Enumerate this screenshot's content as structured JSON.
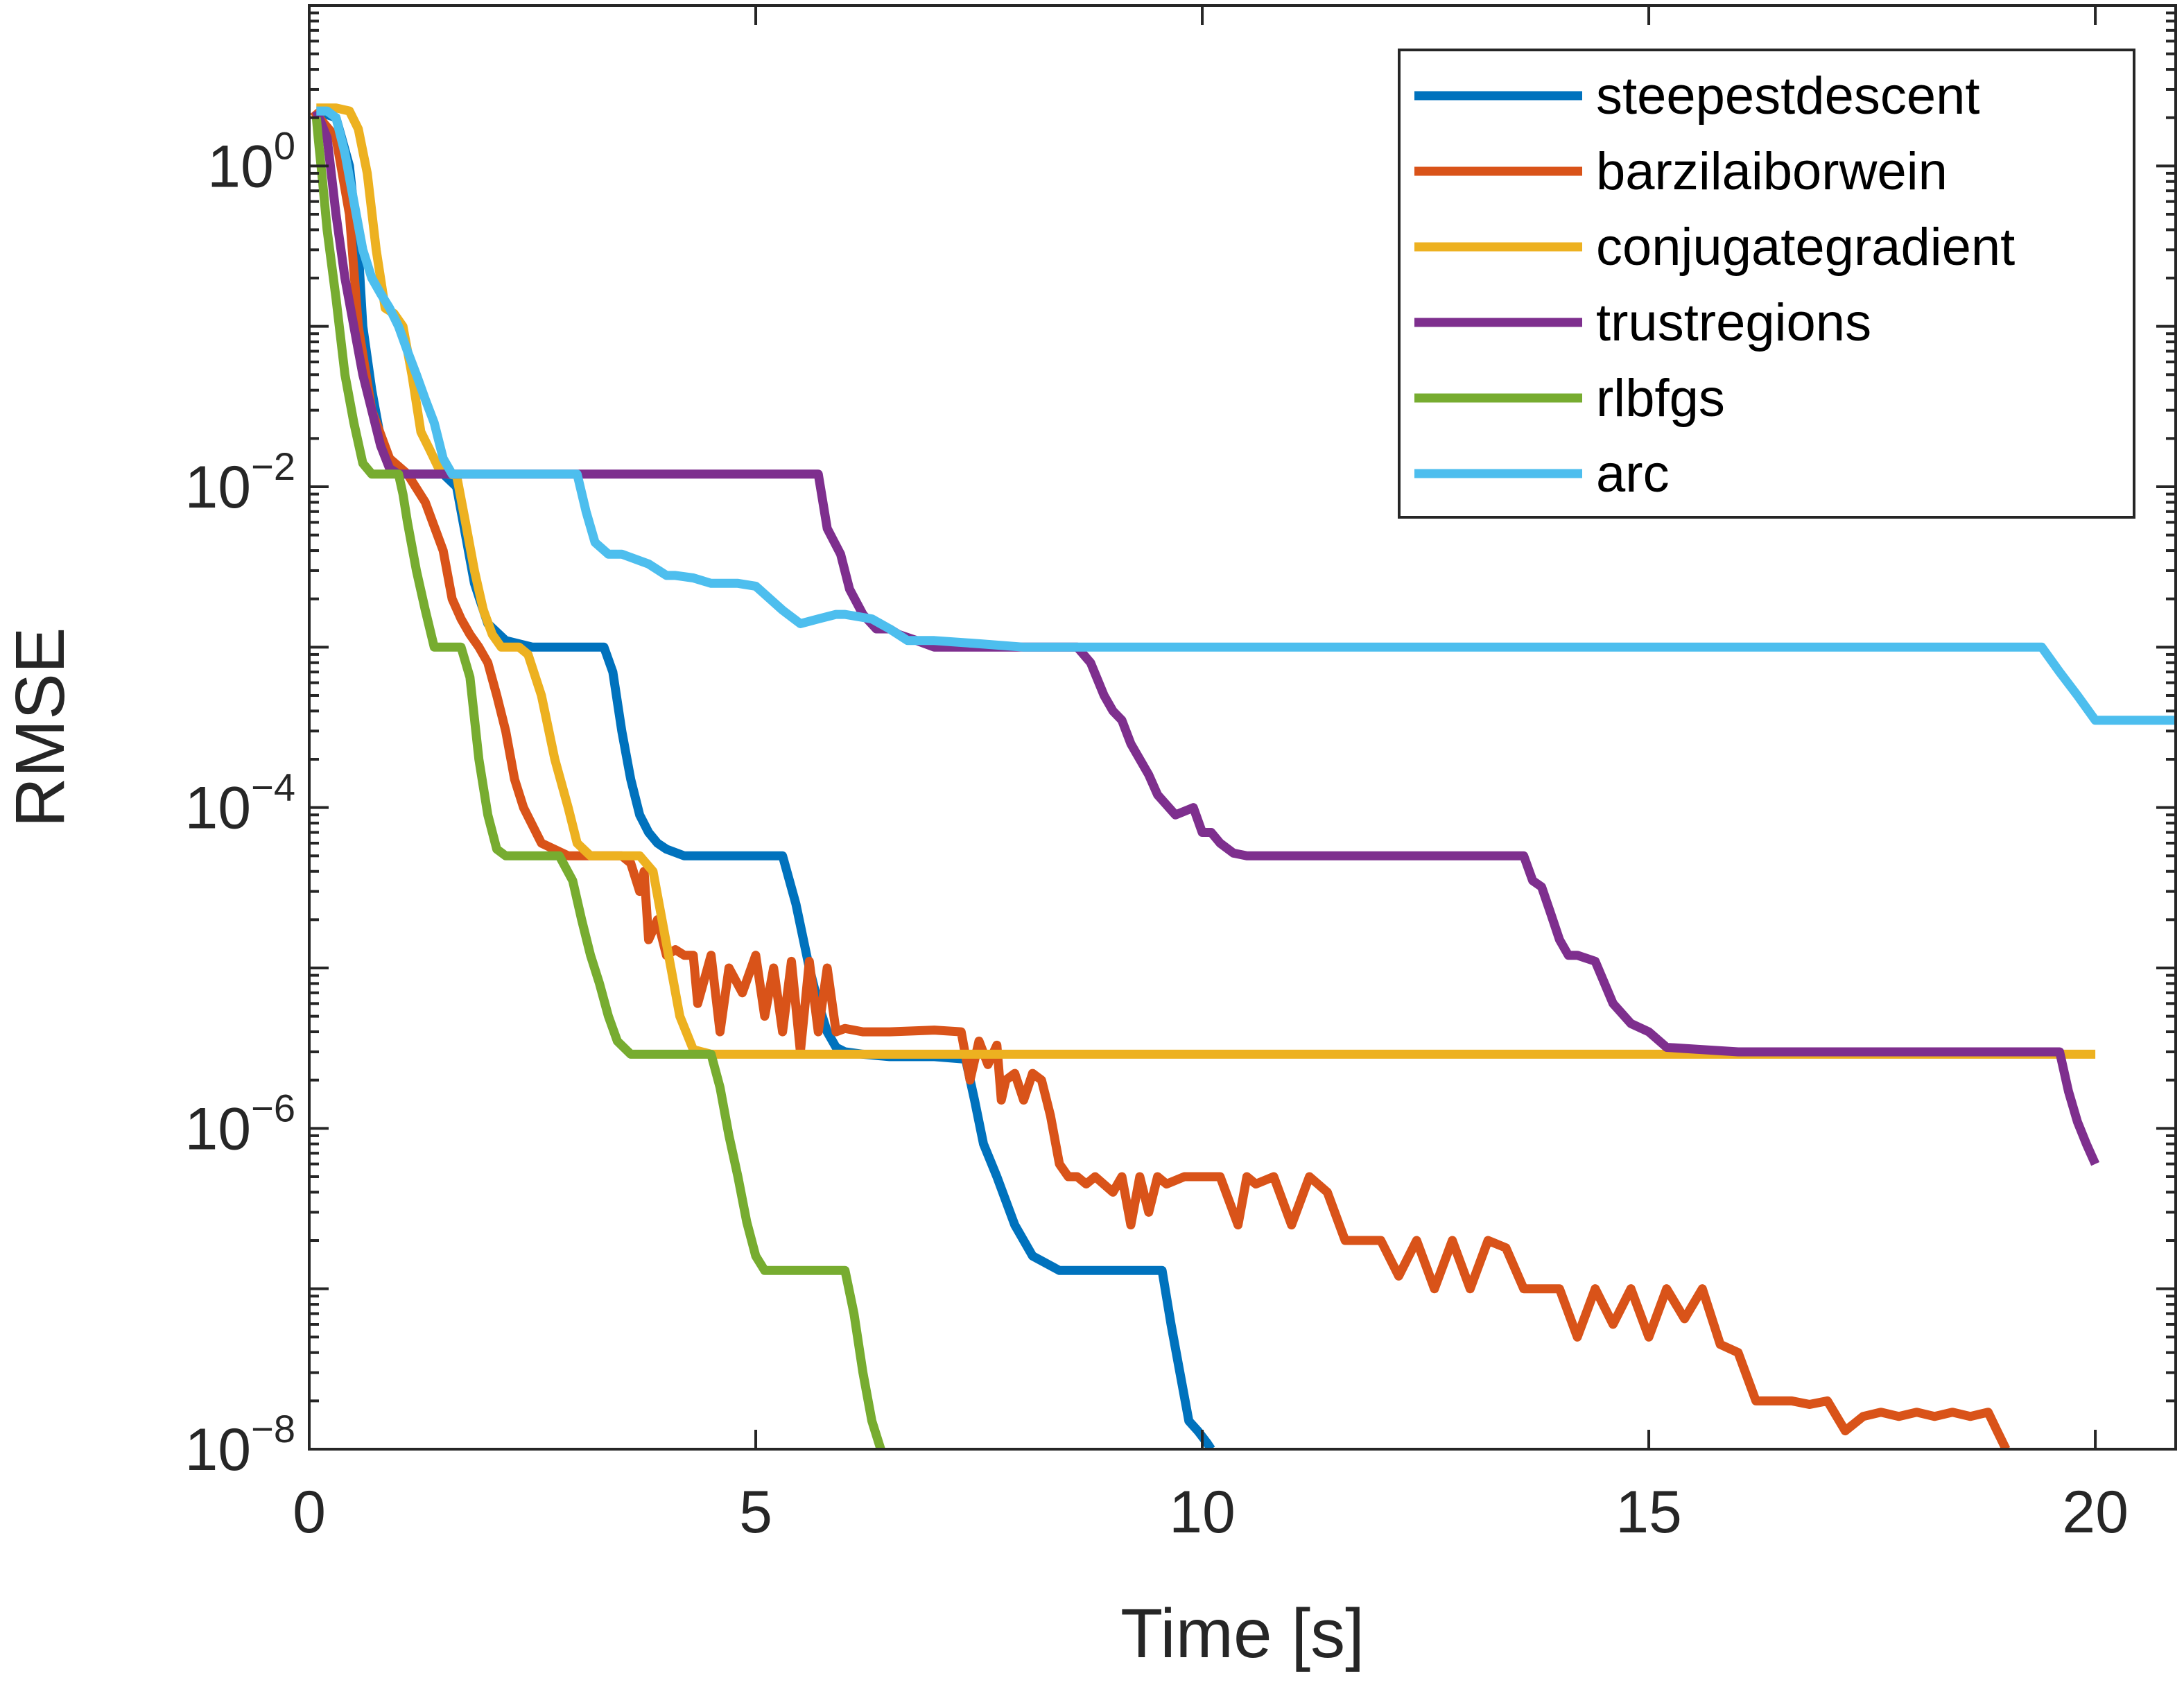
{
  "chart_data": {
    "type": "line",
    "title": "",
    "xlabel": "Time [s]",
    "ylabel": "RMSE",
    "xscale": "linear",
    "yscale": "log",
    "xlim": [
      0,
      20.9
    ],
    "ylim": [
      1e-08,
      10
    ],
    "xticks": [
      0,
      5,
      10,
      15,
      20
    ],
    "xtick_labels": [
      "0",
      "5",
      "10",
      "15",
      "20"
    ],
    "yticks": [
      1,
      0.01,
      0.0001,
      1e-06,
      1e-08
    ],
    "ytick_labels": [
      {
        "base": "10",
        "exp": "0"
      },
      {
        "base": "10",
        "exp": "−2"
      },
      {
        "base": "10",
        "exp": "−4"
      },
      {
        "base": "10",
        "exp": "−6"
      },
      {
        "base": "10",
        "exp": "−8"
      }
    ],
    "grid": false,
    "legend_position": "top-right",
    "series": [
      {
        "name": "steepestdescent",
        "color": "#0072BD",
        "x": [
          0.08,
          0.3,
          0.45,
          0.55,
          0.6,
          0.7,
          0.8,
          0.9,
          1.0,
          1.2,
          1.5,
          1.65,
          1.75,
          1.85,
          2.0,
          2.2,
          2.5,
          2.8,
          3.1,
          3.3,
          3.4,
          3.5,
          3.6,
          3.7,
          3.8,
          3.9,
          4.0,
          4.2,
          4.5,
          4.8,
          5.3,
          5.45,
          5.6,
          5.7,
          5.8,
          5.9,
          6.0,
          6.2,
          6.5,
          7.0,
          7.35,
          7.45,
          7.55,
          7.7,
          7.9,
          8.1,
          8.4,
          8.8,
          9.2,
          9.55,
          9.65,
          9.75,
          9.85,
          9.95,
          10.05,
          10.1
        ],
        "y": [
          2.2,
          2.0,
          1.0,
          0.3,
          0.1,
          0.04,
          0.02,
          0.014,
          0.012,
          0.012,
          0.012,
          0.01,
          0.005,
          0.0025,
          0.0014,
          0.0011,
          0.001,
          0.001,
          0.001,
          0.001,
          0.0007,
          0.0003,
          0.00015,
          9e-05,
          7e-05,
          6e-05,
          5.5e-05,
          5e-05,
          5e-05,
          5e-05,
          5e-05,
          2.5e-05,
          1e-05,
          6e-06,
          4e-06,
          3.2e-06,
          3e-06,
          2.9e-06,
          2.8e-06,
          2.8e-06,
          2.7e-06,
          1.5e-06,
          8e-07,
          5e-07,
          2.5e-07,
          1.6e-07,
          1.3e-07,
          1.3e-07,
          1.3e-07,
          1.3e-07,
          6e-08,
          3e-08,
          1.5e-08,
          1.3e-08,
          1.1e-08,
          1e-08
        ]
      },
      {
        "name": "barzilaiborwein",
        "color": "#D95319",
        "x": [
          0.05,
          0.3,
          0.45,
          0.55,
          0.7,
          0.9,
          1.1,
          1.3,
          1.5,
          1.6,
          1.7,
          1.8,
          1.9,
          2.0,
          2.1,
          2.2,
          2.3,
          2.4,
          2.6,
          2.9,
          3.2,
          3.5,
          3.6,
          3.7,
          3.75,
          3.8,
          3.9,
          4.0,
          4.1,
          4.2,
          4.3,
          4.35,
          4.5,
          4.6,
          4.7,
          4.85,
          5.0,
          5.1,
          5.2,
          5.3,
          5.4,
          5.5,
          5.6,
          5.7,
          5.8,
          5.9,
          6.0,
          6.2,
          6.5,
          7.0,
          7.3,
          7.4,
          7.5,
          7.6,
          7.7,
          7.75,
          7.8,
          7.9,
          8.0,
          8.1,
          8.2,
          8.3,
          8.4,
          8.5,
          8.6,
          8.7,
          8.8,
          9.0,
          9.1,
          9.2,
          9.3,
          9.4,
          9.5,
          9.6,
          9.8,
          10.0,
          10.2,
          10.4,
          10.5,
          10.6,
          10.8,
          11.0,
          11.2,
          11.4,
          11.6,
          11.8,
          12.0,
          12.2,
          12.4,
          12.6,
          12.8,
          13.0,
          13.2,
          13.4,
          13.6,
          13.8,
          14.0,
          14.2,
          14.4,
          14.6,
          14.8,
          15.0,
          15.2,
          15.4,
          15.6,
          15.8,
          16.0,
          16.2,
          16.4,
          16.6,
          16.8,
          17.0,
          17.2,
          17.4,
          17.6,
          17.8,
          18.0,
          18.2,
          18.4,
          18.6,
          18.8,
          18.9,
          19.0
        ],
        "y": [
          2.2,
          1.5,
          0.5,
          0.1,
          0.03,
          0.015,
          0.012,
          0.008,
          0.004,
          0.002,
          0.0015,
          0.0012,
          0.001,
          0.0008,
          0.0005,
          0.0003,
          0.00015,
          0.0001,
          6e-05,
          5e-05,
          5e-05,
          5e-05,
          4.5e-05,
          3e-05,
          4e-05,
          1.5e-05,
          2e-05,
          1.2e-05,
          1.3e-05,
          1.2e-05,
          1.2e-05,
          6e-06,
          1.2e-05,
          4e-06,
          1e-05,
          7e-06,
          1.2e-05,
          5e-06,
          1e-05,
          4e-06,
          1.1e-05,
          3e-06,
          1.1e-05,
          4e-06,
          1e-05,
          4e-06,
          4.2e-06,
          4e-06,
          4e-06,
          4.1e-06,
          4e-06,
          2e-06,
          3.5e-06,
          2.5e-06,
          3.3e-06,
          1.5e-06,
          2e-06,
          2.2e-06,
          1.5e-06,
          2.2e-06,
          2e-06,
          1.2e-06,
          6e-07,
          5e-07,
          5e-07,
          4.5e-07,
          5e-07,
          4e-07,
          5e-07,
          2.5e-07,
          5e-07,
          3e-07,
          5e-07,
          4.5e-07,
          5e-07,
          5e-07,
          5e-07,
          2.5e-07,
          5e-07,
          4.5e-07,
          5e-07,
          2.5e-07,
          5e-07,
          4e-07,
          2e-07,
          2e-07,
          2e-07,
          1.2e-07,
          2e-07,
          1e-07,
          2e-07,
          1e-07,
          2e-07,
          1.8e-07,
          1e-07,
          1e-07,
          1e-07,
          5e-08,
          1e-07,
          6e-08,
          1e-07,
          5e-08,
          1e-07,
          6.5e-08,
          1e-07,
          4.5e-08,
          4e-08,
          2e-08,
          2e-08,
          2e-08,
          1.9e-08,
          2e-08,
          1.3e-08,
          1.6e-08,
          1.7e-08,
          1.6e-08,
          1.7e-08,
          1.6e-08,
          1.7e-08,
          1.6e-08,
          1.7e-08,
          1.3e-08,
          1e-08
        ]
      },
      {
        "name": "conjugategradient",
        "color": "#EDB120",
        "x": [
          0.08,
          0.3,
          0.45,
          0.55,
          0.65,
          0.75,
          0.85,
          0.95,
          1.05,
          1.15,
          1.25,
          1.35,
          1.45,
          1.55,
          1.65,
          1.75,
          1.85,
          1.95,
          2.05,
          2.15,
          2.25,
          2.35,
          2.45,
          2.6,
          2.75,
          2.9,
          3.0,
          3.15,
          3.3,
          3.5,
          3.7,
          3.85,
          3.95,
          4.05,
          4.15,
          4.3,
          4.5,
          5.0,
          7.0,
          10.0,
          13.0,
          16.0,
          20.0
        ],
        "y": [
          2.3,
          2.3,
          2.2,
          1.7,
          0.9,
          0.3,
          0.13,
          0.12,
          0.1,
          0.05,
          0.022,
          0.017,
          0.013,
          0.012,
          0.0118,
          0.006,
          0.003,
          0.0017,
          0.0012,
          0.001,
          0.001,
          0.001,
          0.0009,
          0.0005,
          0.0002,
          0.0001,
          6e-05,
          5e-05,
          5e-05,
          5e-05,
          5e-05,
          4e-05,
          2e-05,
          1e-05,
          5e-06,
          3.1e-06,
          2.9e-06,
          2.9e-06,
          2.9e-06,
          2.9e-06,
          2.9e-06,
          2.9e-06,
          2.9e-06
        ]
      },
      {
        "name": "trustregions",
        "color": "#7E2F8E",
        "x": [
          0.08,
          0.2,
          0.3,
          0.4,
          0.5,
          0.6,
          0.7,
          0.8,
          0.9,
          1.0,
          1.2,
          1.5,
          2.0,
          3.0,
          4.0,
          5.0,
          5.7,
          5.8,
          5.95,
          6.05,
          6.2,
          6.35,
          6.5,
          6.6,
          6.8,
          7.0,
          7.5,
          8.0,
          8.6,
          8.75,
          8.9,
          9.0,
          9.1,
          9.2,
          9.3,
          9.4,
          9.5,
          9.7,
          9.9,
          10.0,
          10.1,
          10.2,
          10.35,
          10.5,
          10.7,
          11.0,
          12.0,
          13.0,
          13.6,
          13.7,
          13.8,
          13.9,
          14.0,
          14.1,
          14.2,
          14.4,
          14.6,
          14.8,
          15.0,
          15.2,
          15.6,
          16.0,
          17.0,
          18.0,
          19.0,
          19.6,
          19.7,
          19.8,
          19.9,
          20.0
        ],
        "y": [
          2.2,
          1.5,
          0.5,
          0.2,
          0.1,
          0.05,
          0.03,
          0.018,
          0.013,
          0.012,
          0.012,
          0.012,
          0.012,
          0.012,
          0.012,
          0.012,
          0.012,
          0.0055,
          0.0038,
          0.0023,
          0.0016,
          0.0013,
          0.0013,
          0.0012,
          0.0011,
          0.001,
          0.001,
          0.001,
          0.001,
          0.0008,
          0.0005,
          0.0004,
          0.00035,
          0.00025,
          0.0002,
          0.00016,
          0.00012,
          9e-05,
          0.0001,
          7e-05,
          7e-05,
          6e-05,
          5.2e-05,
          5e-05,
          5e-05,
          5e-05,
          5e-05,
          5e-05,
          5e-05,
          3.5e-05,
          3.2e-05,
          2.2e-05,
          1.5e-05,
          1.2e-05,
          1.2e-05,
          1.1e-05,
          6e-06,
          4.5e-06,
          4e-06,
          3.2e-06,
          3.1e-06,
          3e-06,
          3e-06,
          3e-06,
          3e-06,
          3e-06,
          1.7e-06,
          1.1e-06,
          8e-07,
          6e-07
        ]
      },
      {
        "name": "rlbfgs",
        "color": "#77AC30",
        "x": [
          0.08,
          0.1,
          0.15,
          0.2,
          0.3,
          0.4,
          0.5,
          0.6,
          0.7,
          0.8,
          0.9,
          1.0,
          1.05,
          1.1,
          1.2,
          1.3,
          1.4,
          1.5,
          1.6,
          1.7,
          1.8,
          1.9,
          2.0,
          2.1,
          2.2,
          2.3,
          2.5,
          2.8,
          2.95,
          3.05,
          3.15,
          3.25,
          3.35,
          3.45,
          3.6,
          3.8,
          4.0,
          4.5,
          4.6,
          4.7,
          4.8,
          4.9,
          5.0,
          5.1,
          5.3,
          5.5,
          5.7,
          6.0,
          6.1,
          6.2,
          6.3,
          6.4
        ],
        "y": [
          2.0,
          1.5,
          0.8,
          0.4,
          0.15,
          0.05,
          0.025,
          0.014,
          0.012,
          0.012,
          0.012,
          0.012,
          0.009,
          0.006,
          0.003,
          0.0017,
          0.001,
          0.001,
          0.001,
          0.001,
          0.00065,
          0.0002,
          9e-05,
          5.5e-05,
          5e-05,
          5e-05,
          5e-05,
          5e-05,
          3.5e-05,
          2e-05,
          1.2e-05,
          8e-06,
          5e-06,
          3.5e-06,
          2.9e-06,
          2.9e-06,
          2.9e-06,
          2.9e-06,
          1.8e-06,
          9e-07,
          5e-07,
          2.6e-07,
          1.6e-07,
          1.3e-07,
          1.3e-07,
          1.3e-07,
          1.3e-07,
          1.3e-07,
          7e-08,
          3e-08,
          1.5e-08,
          1e-08
        ]
      },
      {
        "name": "arc",
        "color": "#4DBEEE",
        "x": [
          0.08,
          0.2,
          0.3,
          0.4,
          0.5,
          0.6,
          0.7,
          0.8,
          0.9,
          1.0,
          1.1,
          1.2,
          1.3,
          1.4,
          1.5,
          1.6,
          2.0,
          2.5,
          3.0,
          3.1,
          3.2,
          3.35,
          3.5,
          3.8,
          4.0,
          4.1,
          4.3,
          4.5,
          4.8,
          5.0,
          5.3,
          5.5,
          5.7,
          5.9,
          6.0,
          6.3,
          6.5,
          6.7,
          7.0,
          7.5,
          8.0,
          9.0,
          10.0,
          12.0,
          14.0,
          16.0,
          18.0,
          19.4,
          19.6,
          19.8,
          20.0,
          20.9
        ],
        "y": [
          2.2,
          2.2,
          2.0,
          1.2,
          0.6,
          0.3,
          0.2,
          0.16,
          0.13,
          0.1,
          0.07,
          0.05,
          0.035,
          0.025,
          0.015,
          0.012,
          0.012,
          0.012,
          0.012,
          0.007,
          0.0045,
          0.0038,
          0.0038,
          0.0033,
          0.0028,
          0.0028,
          0.0027,
          0.0025,
          0.0025,
          0.0024,
          0.0017,
          0.0014,
          0.0015,
          0.0016,
          0.0016,
          0.0015,
          0.0013,
          0.0011,
          0.0011,
          0.00105,
          0.001,
          0.001,
          0.001,
          0.001,
          0.001,
          0.001,
          0.001,
          0.001,
          0.0007,
          0.0005,
          0.00035,
          0.00035
        ]
      }
    ]
  }
}
